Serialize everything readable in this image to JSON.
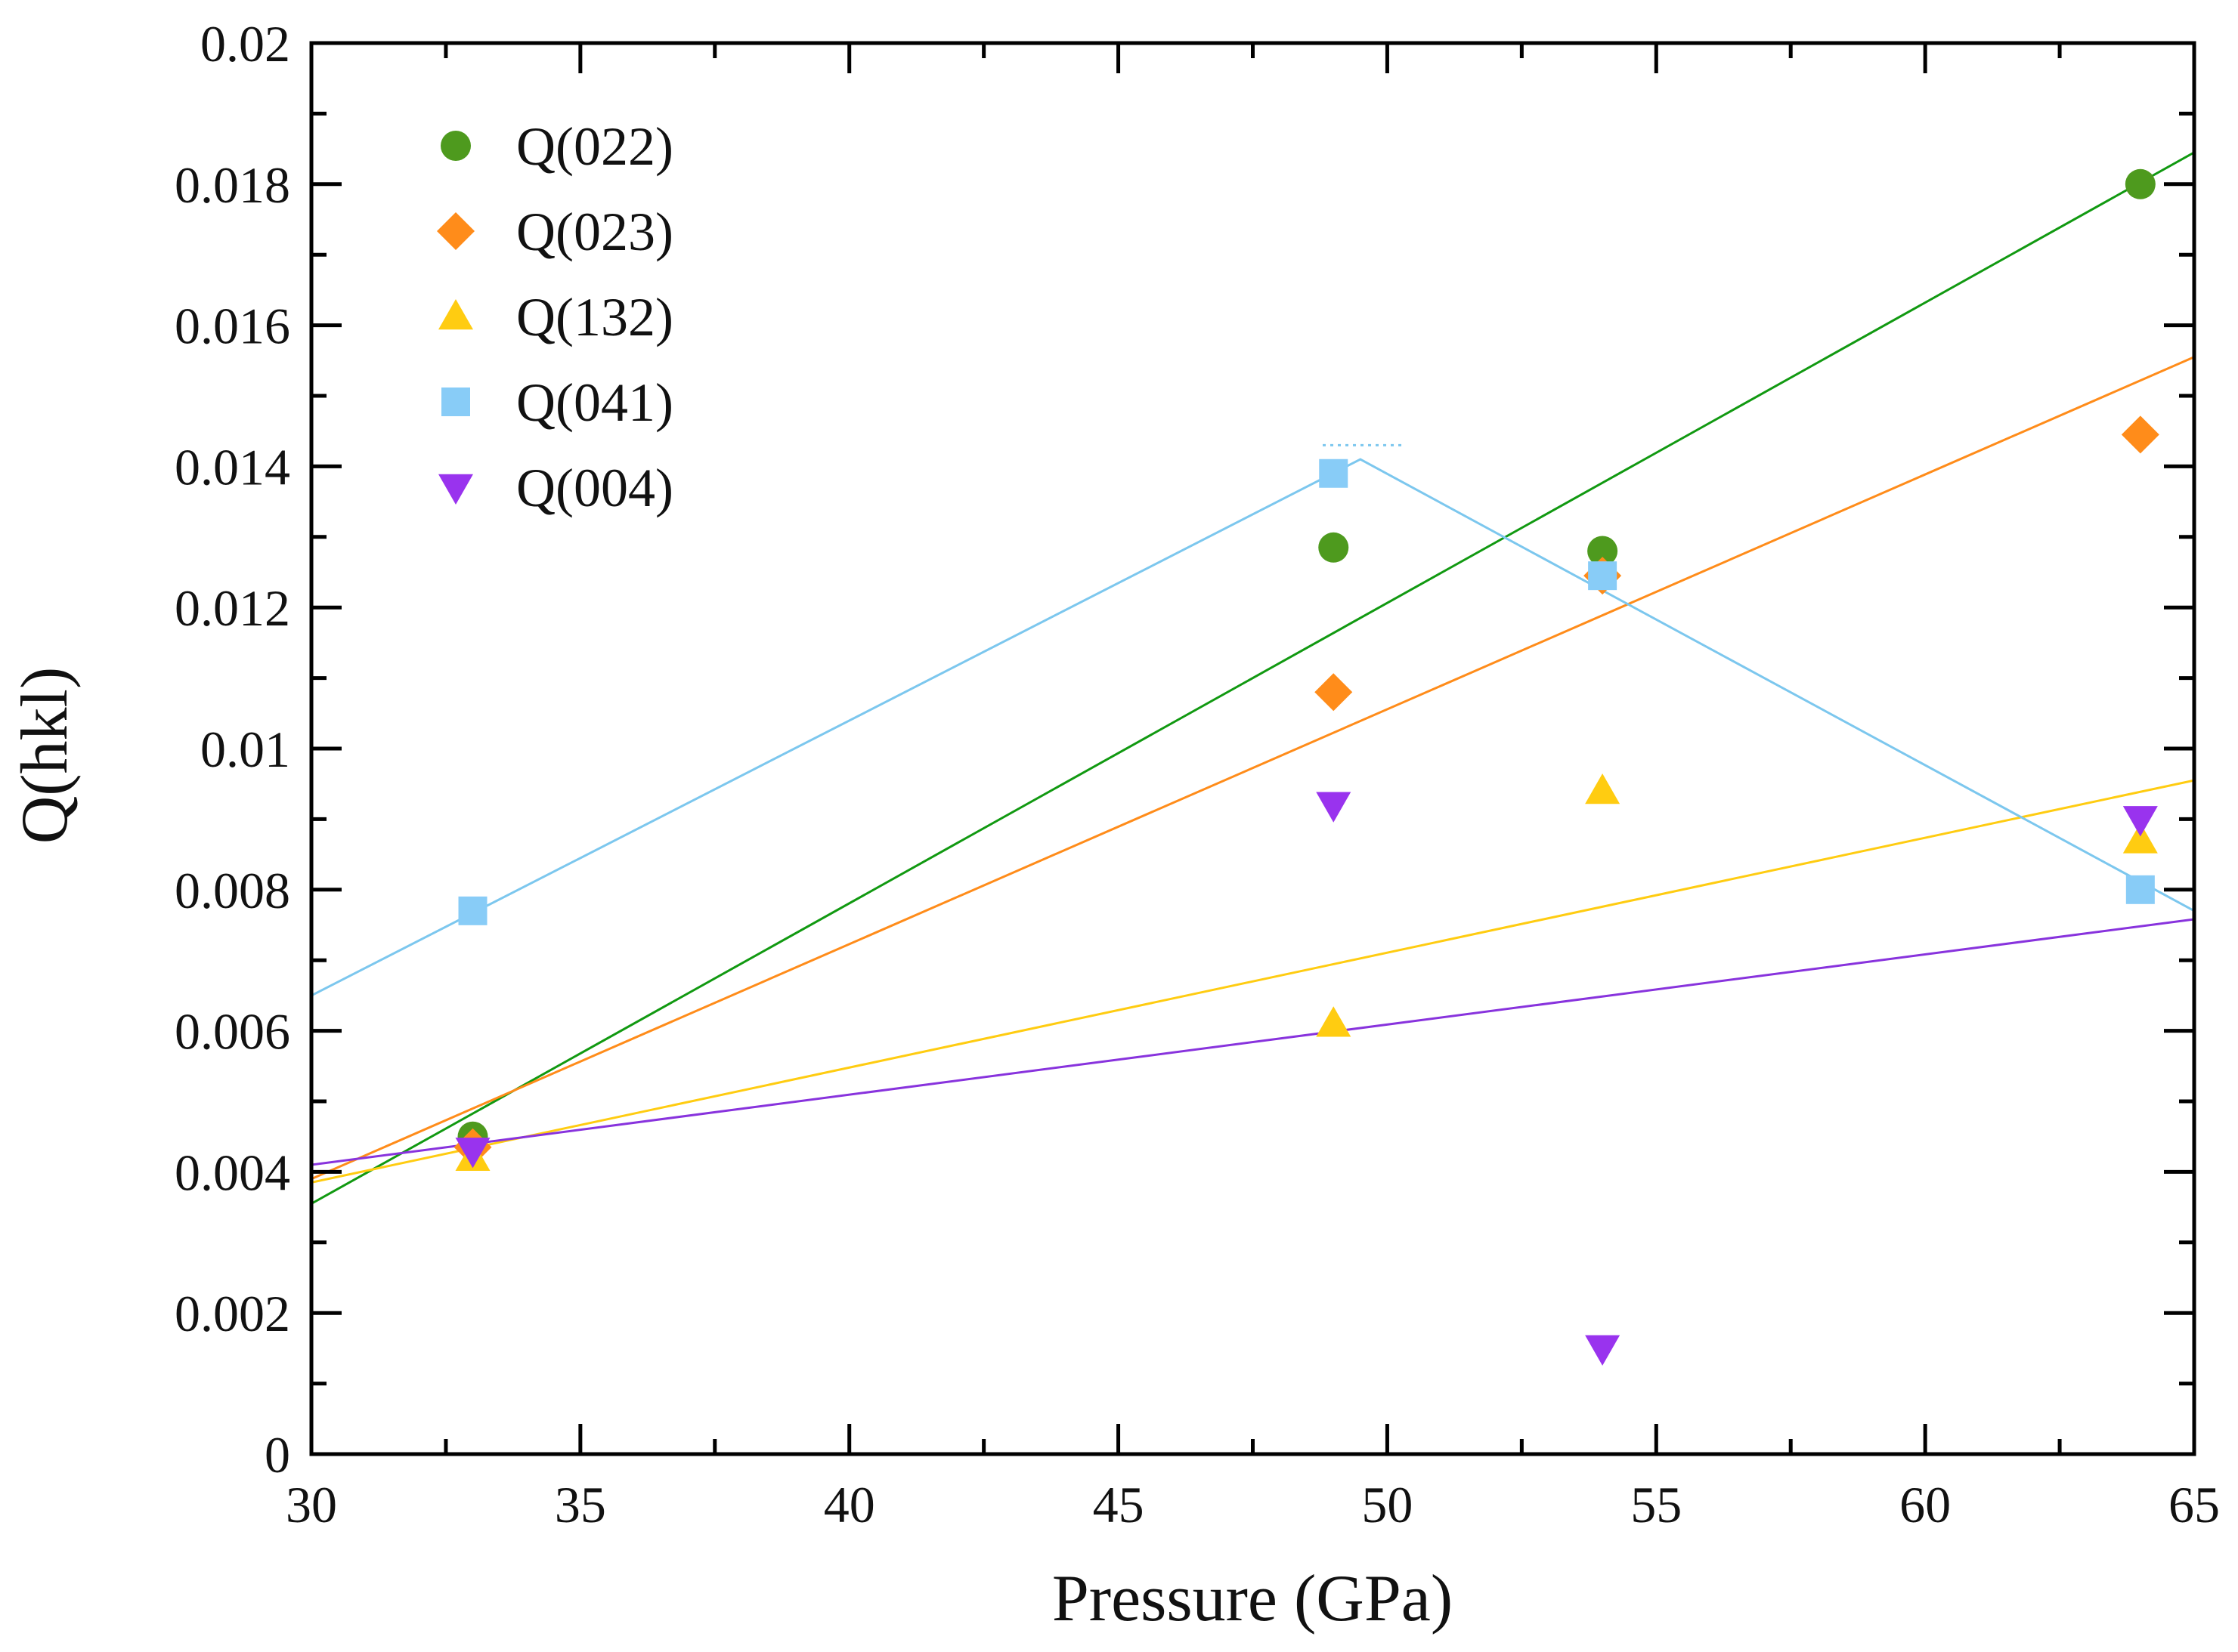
{
  "chart_data": {
    "type": "scatter",
    "title": "",
    "xlabel": "Pressure (GPa)",
    "ylabel": "Q(hkl)",
    "xlim": [
      30,
      65
    ],
    "ylim": [
      0,
      0.02
    ],
    "x_ticks": [
      "30",
      "35",
      "40",
      "45",
      "50",
      "55",
      "60",
      "65"
    ],
    "x_tick_values": [
      30,
      35,
      40,
      45,
      50,
      55,
      60,
      65
    ],
    "y_ticks": [
      "0",
      "0.002",
      "0.004",
      "0.006",
      "0.008",
      "0.01",
      "0.012",
      "0.014",
      "0.016",
      "0.018",
      "0.02"
    ],
    "y_tick_values": [
      0,
      0.002,
      0.004,
      0.006,
      0.008,
      0.01,
      0.012,
      0.014,
      0.016,
      0.018,
      0.02
    ],
    "grid": false,
    "legend_position": "top-left",
    "series": [
      {
        "name": "Q(022)",
        "marker": "circle",
        "color": "#4e9a1e",
        "line_color": "#119911",
        "x": [
          33,
          49,
          54,
          64
        ],
        "y": [
          0.0045,
          0.01285,
          0.0128,
          0.018
        ],
        "fit": [
          [
            30,
            0.00355
          ],
          [
            65,
            0.01845
          ]
        ]
      },
      {
        "name": "Q(023)",
        "marker": "diamond",
        "color": "#ff8c1a",
        "line_color": "#ff8c1a",
        "x": [
          33,
          49,
          54,
          64
        ],
        "y": [
          0.00435,
          0.0108,
          0.01245,
          0.01445
        ],
        "fit": [
          [
            30,
            0.0039
          ],
          [
            65,
            0.01555
          ]
        ]
      },
      {
        "name": "Q(132)",
        "marker": "triangle-up",
        "color": "#ffcc11",
        "line_color": "#ffcc11",
        "x": [
          33,
          49,
          54,
          64
        ],
        "y": [
          0.0042,
          0.0061,
          0.0094,
          0.0087
        ],
        "fit": [
          [
            30,
            0.00385
          ],
          [
            65,
            0.00955
          ]
        ]
      },
      {
        "name": "Q(041)",
        "marker": "square",
        "color": "#88ccf7",
        "line_color": "#7cc7ee",
        "x": [
          33,
          49,
          54,
          64
        ],
        "y": [
          0.0077,
          0.0139,
          0.01245,
          0.008
        ],
        "fit": [
          [
            30,
            0.0065
          ],
          [
            49.5,
            0.0141
          ],
          [
            65,
            0.0077
          ]
        ]
      },
      {
        "name": "Q(004)",
        "marker": "triangle-down",
        "color": "#9933ee",
        "line_color": "#8833dd",
        "x": [
          33,
          49,
          54,
          64
        ],
        "y": [
          0.0043,
          0.0092,
          0.0015,
          0.009
        ],
        "fit": [
          [
            30,
            0.0041
          ],
          [
            65,
            0.00758
          ]
        ]
      }
    ]
  }
}
